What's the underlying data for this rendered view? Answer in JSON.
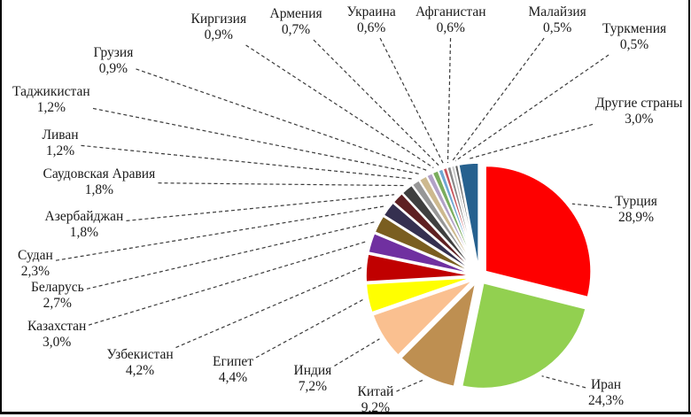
{
  "chart_data": {
    "type": "pie",
    "style": "exploded",
    "title": "",
    "legend_position": "callout-labels",
    "unit": "%",
    "decimal_separator": ",",
    "slices": [
      {
        "label": "Турция",
        "pct_label": "28,9%",
        "value": 28.9,
        "color": "#fe0000"
      },
      {
        "label": "Иран",
        "pct_label": "24,3%",
        "value": 24.3,
        "color": "#92d050"
      },
      {
        "label": "Китай",
        "pct_label": "9,2%",
        "value": 9.2,
        "color": "#be8f51"
      },
      {
        "label": "Индия",
        "pct_label": "7,2%",
        "value": 7.2,
        "color": "#fac090"
      },
      {
        "label": "Египет",
        "pct_label": "4,4%",
        "value": 4.4,
        "color": "#ffff00"
      },
      {
        "label": "Узбекистан",
        "pct_label": "4,2%",
        "value": 4.2,
        "color": "#c00000"
      },
      {
        "label": "Казахстан",
        "pct_label": "3,0%",
        "value": 3.0,
        "color": "#7030a0"
      },
      {
        "label": "Беларусь",
        "pct_label": "2,7%",
        "value": 2.7,
        "color": "#7a5e20"
      },
      {
        "label": "Судан",
        "pct_label": "2,3%",
        "value": 2.3,
        "color": "#353050"
      },
      {
        "label": "Азербайджан",
        "pct_label": "1,8%",
        "value": 1.8,
        "color": "#5e2022"
      },
      {
        "label": "Саудовская Аравия",
        "pct_label": "1,8%",
        "value": 1.8,
        "color": "#3f3f3f"
      },
      {
        "label": "Ливан",
        "pct_label": "1,2%",
        "value": 1.2,
        "color": "#979797"
      },
      {
        "label": "Таджикистан",
        "pct_label": "1,2%",
        "value": 1.2,
        "color": "#cdb98f"
      },
      {
        "label": "Грузия",
        "pct_label": "0,9%",
        "value": 0.9,
        "color": "#b2a1c7"
      },
      {
        "label": "Киргизия",
        "pct_label": "0,9%",
        "value": 0.9,
        "color": "#7bad5e"
      },
      {
        "label": "Армения",
        "pct_label": "0,7%",
        "value": 0.7,
        "color": "#6fa8d4"
      },
      {
        "label": "Украина",
        "pct_label": "0,6%",
        "value": 0.6,
        "color": "#c8545c"
      },
      {
        "label": "Афганистан",
        "pct_label": "0,6%",
        "value": 0.6,
        "color": "#898989"
      },
      {
        "label": "Малайзия",
        "pct_label": "0,5%",
        "value": 0.5,
        "color": "#c6c6c6"
      },
      {
        "label": "Туркмения",
        "pct_label": "0,5%",
        "value": 0.5,
        "color": "#5f5f5f"
      },
      {
        "label": "Другие страны",
        "pct_label": "3,0%",
        "value": 3.0,
        "color": "#26618f"
      }
    ]
  },
  "frame": {
    "background": "#ffffff",
    "border_color": "#000000",
    "leader_line_color": "#3b3b3b"
  }
}
